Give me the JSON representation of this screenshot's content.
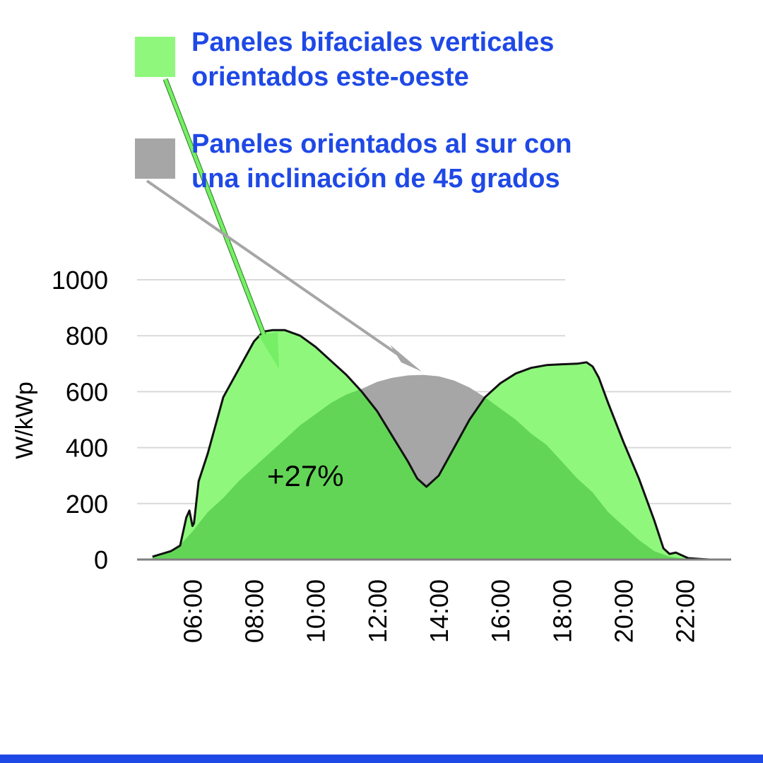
{
  "colors": {
    "bifacial": "#8ff87c",
    "south": "#a6a6a6",
    "overlap": "#62d556",
    "legend_text": "#1f49e6",
    "bottom_bar": "#1f49e6",
    "bifacial_arrow": "#76ee66",
    "south_arrow": "#a6a6a6"
  },
  "legend": {
    "bifacial_label_line1": "Paneles bifaciales verticales",
    "bifacial_label_line2": "orientados este-oeste",
    "south_label_line1": "Paneles orientados al sur con",
    "south_label_line2": "una inclinación de 45 grados"
  },
  "chart_data": {
    "type": "area",
    "ylabel": "W/kWp",
    "xlabel": "",
    "ylim": [
      0,
      1000
    ],
    "xlim": [
      4.2,
      23.5
    ],
    "yticks": [
      0,
      200,
      400,
      600,
      800,
      1000
    ],
    "xticks": [
      {
        "value": 6,
        "label": "06:00"
      },
      {
        "value": 8,
        "label": "08:00"
      },
      {
        "value": 10,
        "label": "10:00"
      },
      {
        "value": 12,
        "label": "12:00"
      },
      {
        "value": 14,
        "label": "14:00"
      },
      {
        "value": 16,
        "label": "16:00"
      },
      {
        "value": 18,
        "label": "18:00"
      },
      {
        "value": 20,
        "label": "20:00"
      },
      {
        "value": 22,
        "label": "22:00"
      }
    ],
    "grid": true,
    "annotation": "+27%",
    "series": [
      {
        "name": "Paneles bifaciales verticales orientados este-oeste",
        "x": [
          4.7,
          5.0,
          5.3,
          5.6,
          5.8,
          5.9,
          6.0,
          6.05,
          6.2,
          6.5,
          7.0,
          7.5,
          8.0,
          8.3,
          8.6,
          9.0,
          9.5,
          10.0,
          10.5,
          11.0,
          11.5,
          12.0,
          12.5,
          13.0,
          13.3,
          13.6,
          14.0,
          14.5,
          15.0,
          15.5,
          16.0,
          16.5,
          17.0,
          17.5,
          18.0,
          18.5,
          18.8,
          19.0,
          19.2,
          19.5,
          20.0,
          20.5,
          21.0,
          21.3,
          21.5,
          21.7,
          21.9,
          22.1,
          22.5,
          22.8
        ],
        "values": [
          10,
          20,
          30,
          50,
          150,
          175,
          120,
          130,
          280,
          380,
          580,
          680,
          780,
          815,
          820,
          820,
          800,
          760,
          710,
          660,
          600,
          530,
          440,
          350,
          290,
          260,
          300,
          400,
          500,
          580,
          630,
          665,
          685,
          695,
          698,
          700,
          705,
          690,
          650,
          560,
          420,
          290,
          140,
          40,
          20,
          25,
          15,
          5,
          2,
          0
        ]
      },
      {
        "name": "Paneles orientados al sur con una inclinación de 45 grados",
        "x": [
          4.7,
          5.0,
          5.5,
          6.0,
          6.5,
          7.0,
          7.5,
          8.0,
          8.5,
          9.0,
          9.5,
          10.0,
          10.5,
          11.0,
          11.5,
          12.0,
          12.5,
          13.0,
          13.5,
          14.0,
          14.5,
          15.0,
          15.5,
          16.0,
          16.5,
          17.0,
          17.5,
          18.0,
          18.5,
          19.0,
          19.5,
          20.0,
          20.5,
          21.0,
          21.5,
          22.0,
          22.5,
          22.8
        ],
        "values": [
          5,
          15,
          40,
          100,
          170,
          220,
          280,
          330,
          380,
          430,
          480,
          520,
          560,
          590,
          610,
          635,
          650,
          658,
          660,
          655,
          640,
          615,
          580,
          540,
          500,
          450,
          410,
          350,
          290,
          240,
          170,
          120,
          70,
          30,
          10,
          3,
          0,
          0
        ]
      }
    ]
  }
}
